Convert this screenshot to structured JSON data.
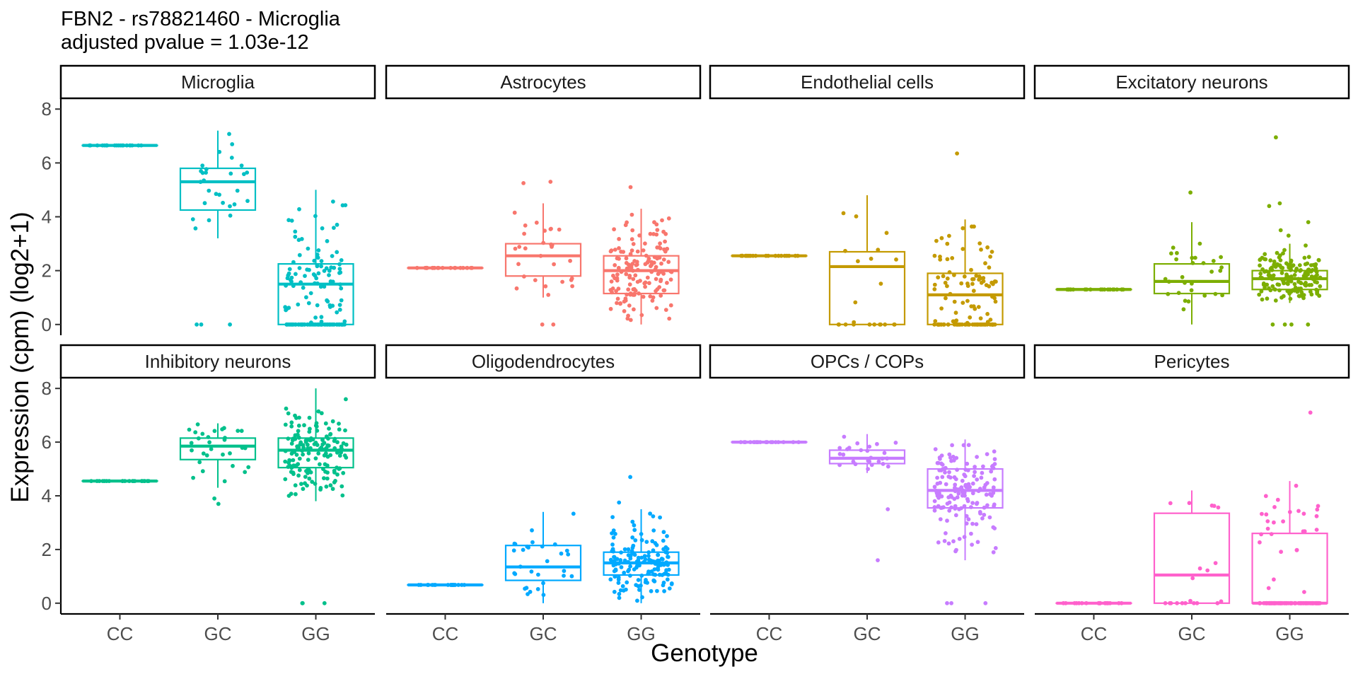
{
  "title": "FBN2 - rs78821460 - Microglia",
  "subtitle": "adjusted pvalue = 1.03e-12",
  "chart_data": {
    "type": "box",
    "title": "FBN2 - rs78821460 - Microglia",
    "subtitle": "adjusted pvalue = 1.03e-12",
    "xlabel": "Genotype",
    "ylabel": "Expression (cpm) (log2+1)",
    "categories": [
      "CC",
      "GC",
      "GG"
    ],
    "ylim": [
      -0.4,
      8.4
    ],
    "yticks": [
      "0",
      "2",
      "4",
      "6",
      "8"
    ],
    "grid": false,
    "legend": "none",
    "panels": [
      {
        "name": "Microglia",
        "color": "#00BFC4",
        "boxes": [
          {
            "genotype": "CC",
            "q1": 6.65,
            "median": 6.65,
            "q3": 6.65,
            "whisker_low": 6.65,
            "whisker_high": 6.65,
            "n": 20,
            "outliers": []
          },
          {
            "genotype": "GC",
            "q1": 4.25,
            "median": 5.3,
            "q3": 5.8,
            "whisker_low": 3.2,
            "whisker_high": 7.2,
            "n": 28,
            "outliers": [
              0,
              0,
              0
            ]
          },
          {
            "genotype": "GG",
            "q1": 0,
            "median": 1.5,
            "q3": 2.25,
            "whisker_low": 0,
            "whisker_high": 5.0,
            "n": 150,
            "outliers": []
          }
        ]
      },
      {
        "name": "Astrocytes",
        "color": "#F8766D",
        "boxes": [
          {
            "genotype": "CC",
            "q1": 2.1,
            "median": 2.1,
            "q3": 2.1,
            "whisker_low": 2.1,
            "whisker_high": 2.1,
            "n": 20,
            "outliers": []
          },
          {
            "genotype": "GC",
            "q1": 1.8,
            "median": 2.55,
            "q3": 3.0,
            "whisker_low": 1.0,
            "whisker_high": 4.5,
            "n": 28,
            "outliers": [
              0,
              0,
              5.3,
              5.25
            ]
          },
          {
            "genotype": "GG",
            "q1": 1.15,
            "median": 2.0,
            "q3": 2.55,
            "whisker_low": 0,
            "whisker_high": 4.3,
            "n": 150,
            "outliers": [
              5.1
            ]
          }
        ]
      },
      {
        "name": "Endothelial cells",
        "color": "#C49A00",
        "boxes": [
          {
            "genotype": "CC",
            "q1": 2.55,
            "median": 2.55,
            "q3": 2.55,
            "whisker_low": 2.55,
            "whisker_high": 2.55,
            "n": 20,
            "outliers": []
          },
          {
            "genotype": "GC",
            "q1": 0,
            "median": 2.15,
            "q3": 2.7,
            "whisker_low": 0,
            "whisker_high": 4.8,
            "n": 22,
            "outliers": []
          },
          {
            "genotype": "GG",
            "q1": 0,
            "median": 1.1,
            "q3": 1.9,
            "whisker_low": 0,
            "whisker_high": 3.9,
            "n": 130,
            "outliers": [
              6.35
            ]
          }
        ]
      },
      {
        "name": "Excitatory neurons",
        "color": "#7CAE00",
        "boxes": [
          {
            "genotype": "CC",
            "q1": 1.3,
            "median": 1.3,
            "q3": 1.3,
            "whisker_low": 1.3,
            "whisker_high": 1.3,
            "n": 20,
            "outliers": []
          },
          {
            "genotype": "GC",
            "q1": 1.15,
            "median": 1.6,
            "q3": 2.25,
            "whisker_low": 0,
            "whisker_high": 3.8,
            "n": 28,
            "outliers": [
              4.9
            ]
          },
          {
            "genotype": "GG",
            "q1": 1.3,
            "median": 1.7,
            "q3": 2.0,
            "whisker_low": 0.8,
            "whisker_high": 3.0,
            "n": 160,
            "outliers": [
              0,
              0,
              0,
              0,
              3.3,
              3.5,
              3.8,
              4.4,
              4.5,
              6.95
            ]
          }
        ]
      },
      {
        "name": "Inhibitory neurons",
        "color": "#00C08B",
        "boxes": [
          {
            "genotype": "CC",
            "q1": 4.55,
            "median": 4.55,
            "q3": 4.55,
            "whisker_low": 4.55,
            "whisker_high": 4.55,
            "n": 20,
            "outliers": []
          },
          {
            "genotype": "GC",
            "q1": 5.35,
            "median": 5.85,
            "q3": 6.15,
            "whisker_low": 4.3,
            "whisker_high": 6.7,
            "n": 30,
            "outliers": [
              3.7,
              3.9
            ]
          },
          {
            "genotype": "GG",
            "q1": 5.05,
            "median": 5.7,
            "q3": 6.15,
            "whisker_low": 3.8,
            "whisker_high": 8.0,
            "n": 160,
            "outliers": [
              0,
              0,
              0
            ]
          }
        ]
      },
      {
        "name": "Oligodendrocytes",
        "color": "#00A9FF",
        "boxes": [
          {
            "genotype": "CC",
            "q1": 0.68,
            "median": 0.68,
            "q3": 0.68,
            "whisker_low": 0.68,
            "whisker_high": 0.68,
            "n": 20,
            "outliers": []
          },
          {
            "genotype": "GC",
            "q1": 0.85,
            "median": 1.35,
            "q3": 2.15,
            "whisker_low": 0,
            "whisker_high": 3.4,
            "n": 30,
            "outliers": []
          },
          {
            "genotype": "GG",
            "q1": 1.05,
            "median": 1.5,
            "q3": 1.9,
            "whisker_low": 0,
            "whisker_high": 3.5,
            "n": 160,
            "outliers": [
              3.75,
              4.7
            ]
          }
        ]
      },
      {
        "name": "OPCs / COPs",
        "color": "#C77CFF",
        "boxes": [
          {
            "genotype": "CC",
            "q1": 6.0,
            "median": 6.0,
            "q3": 6.0,
            "whisker_low": 6.0,
            "whisker_high": 6.0,
            "n": 20,
            "outliers": []
          },
          {
            "genotype": "GC",
            "q1": 5.2,
            "median": 5.4,
            "q3": 5.7,
            "whisker_low": 4.85,
            "whisker_high": 6.3,
            "n": 26,
            "outliers": [
              3.5,
              1.6
            ]
          },
          {
            "genotype": "GG",
            "q1": 3.55,
            "median": 4.2,
            "q3": 5.0,
            "whisker_low": 1.6,
            "whisker_high": 6.1,
            "n": 160,
            "outliers": [
              0,
              0,
              0
            ]
          }
        ]
      },
      {
        "name": "Pericytes",
        "color": "#FF61CC",
        "boxes": [
          {
            "genotype": "CC",
            "q1": 0,
            "median": 0,
            "q3": 0,
            "whisker_low": 0,
            "whisker_high": 0,
            "n": 20,
            "outliers": []
          },
          {
            "genotype": "GC",
            "q1": 0,
            "median": 1.05,
            "q3": 3.35,
            "whisker_low": 0,
            "whisker_high": 4.2,
            "n": 20,
            "outliers": []
          },
          {
            "genotype": "GG",
            "q1": 0,
            "median": 0,
            "q3": 2.6,
            "whisker_low": 0,
            "whisker_high": 4.55,
            "n": 120,
            "outliers": [
              7.1
            ]
          }
        ]
      }
    ]
  }
}
